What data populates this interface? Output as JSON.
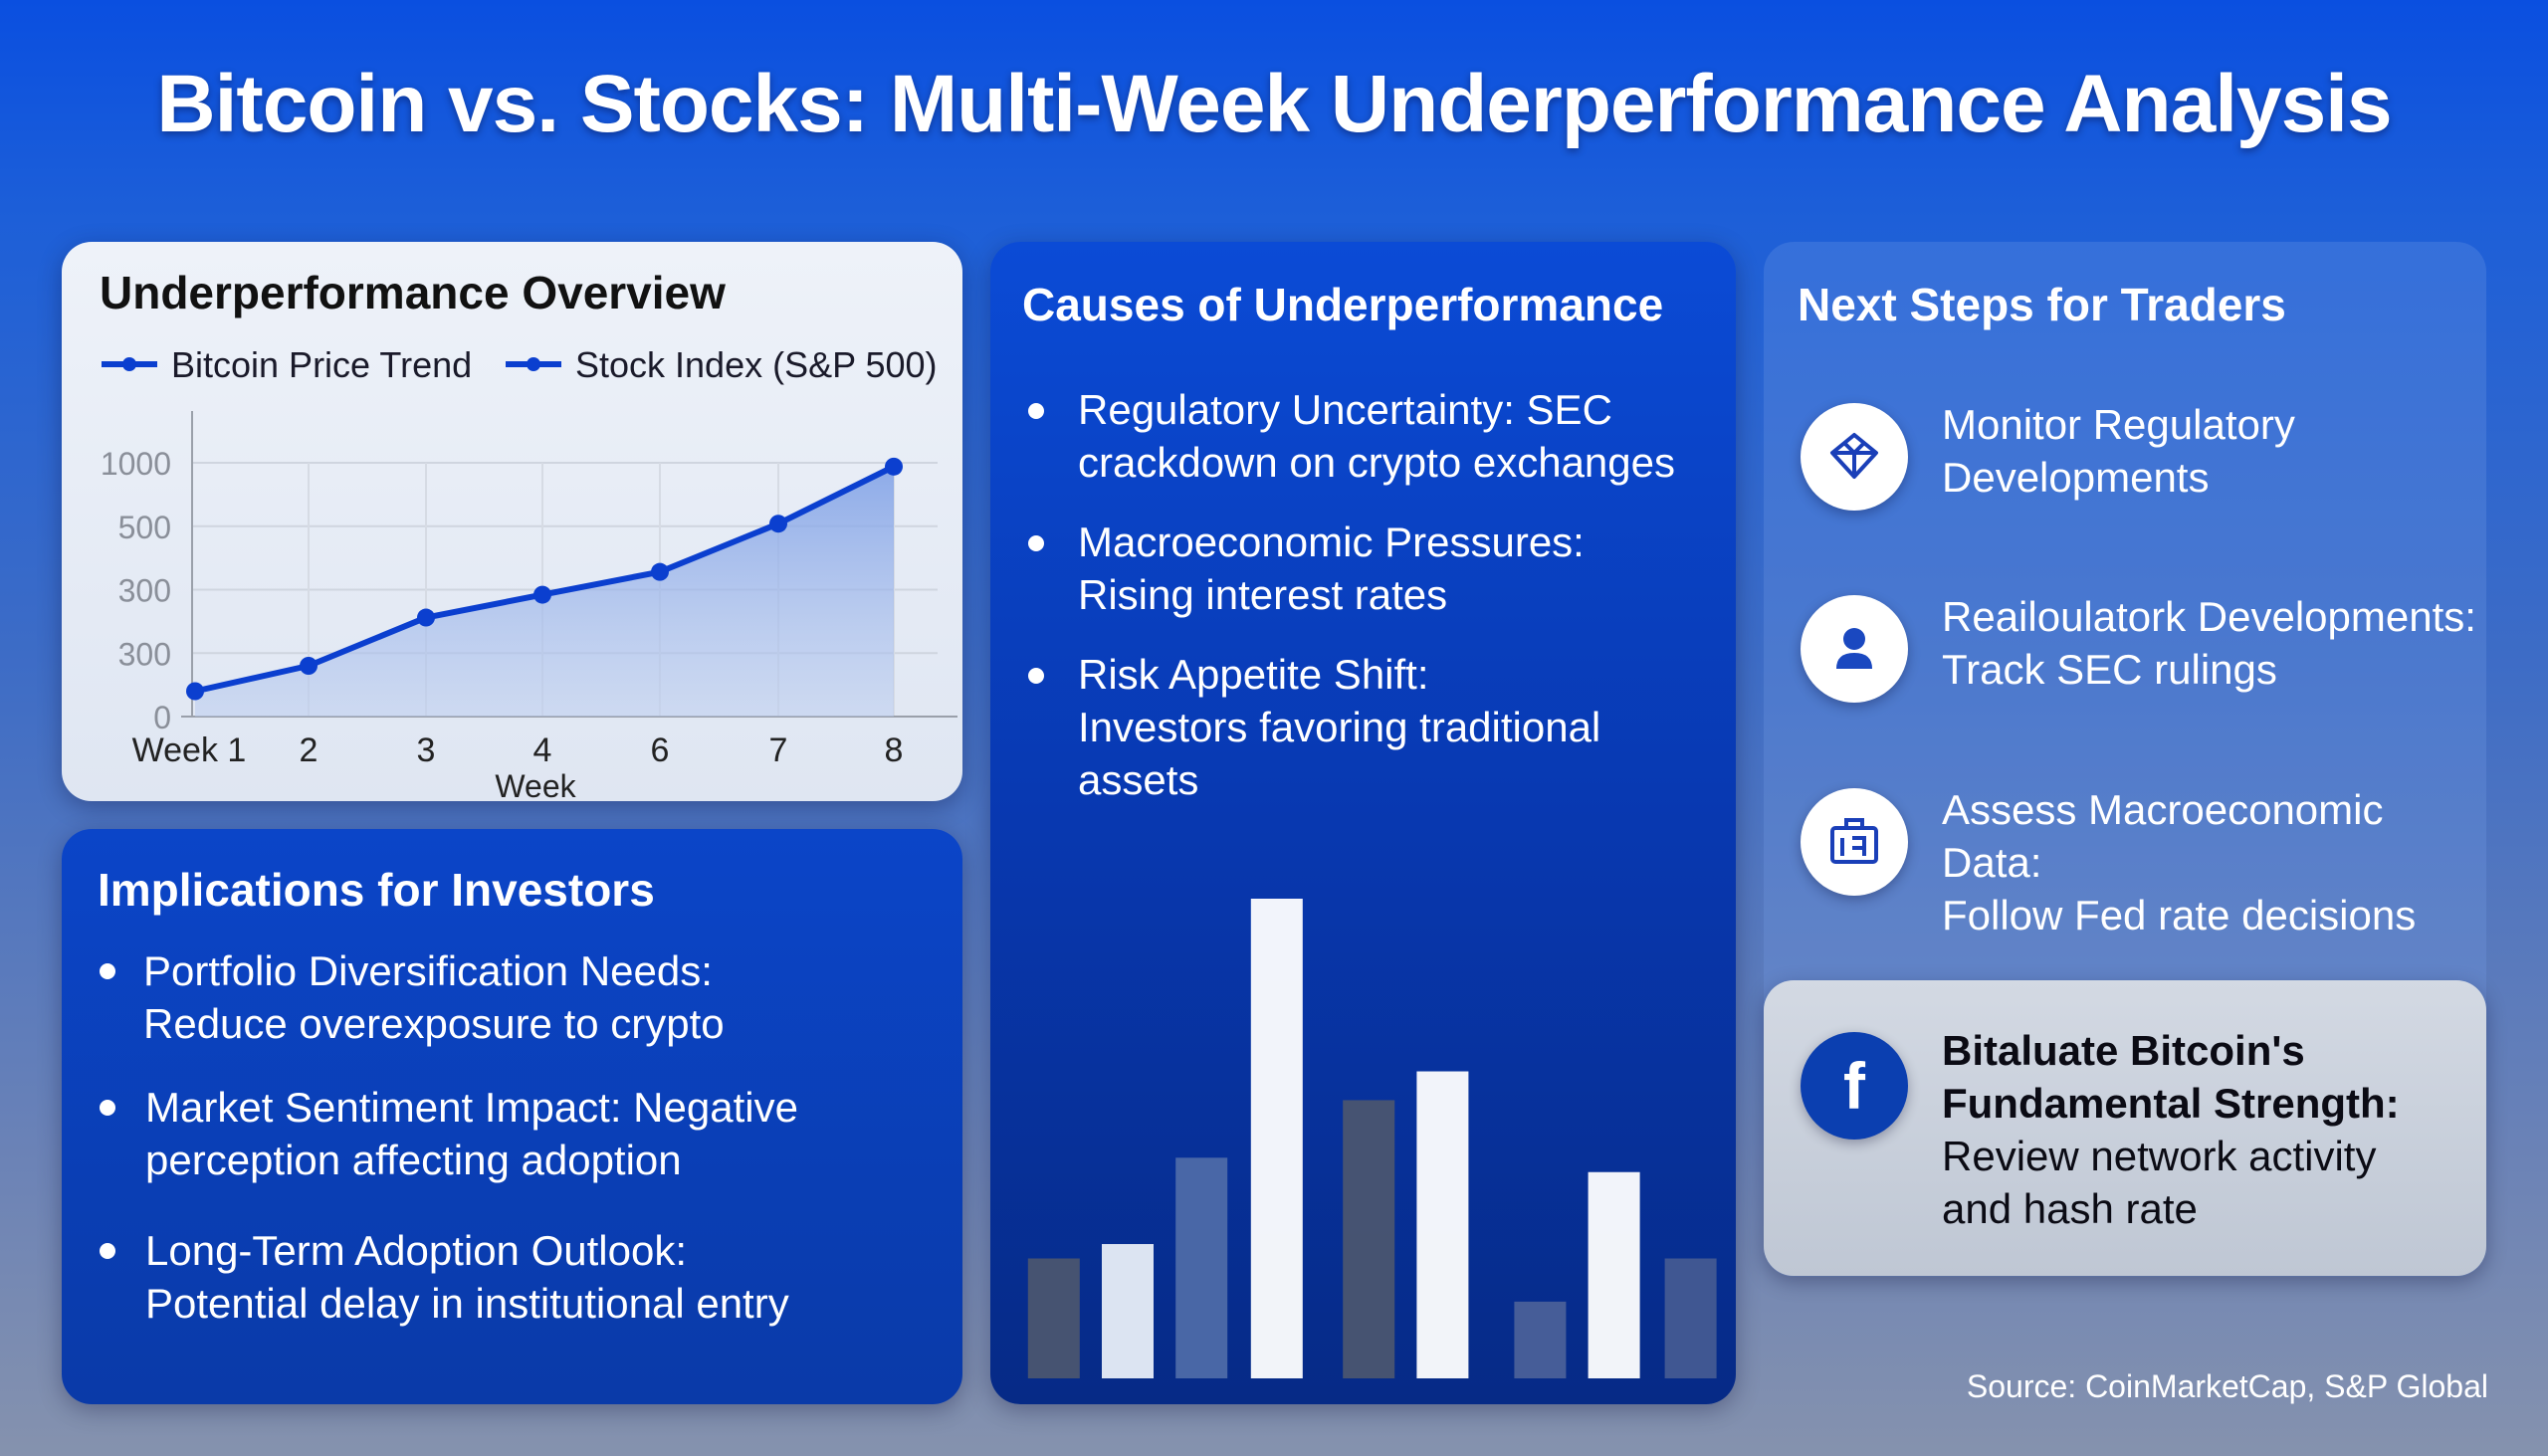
{
  "title": "Bitcoin vs. Stocks: Multi-Week Underperformance Analysis",
  "overview": {
    "title": "Underperformance Overview"
  },
  "chart_data": [
    {
      "type": "area",
      "title": "Underperformance Overview",
      "xlabel": "Week",
      "ylabel": "",
      "legend": [
        "Bitcoin Price Trend",
        "Stock Index (S&P 500)"
      ],
      "legend_position": "top",
      "categories": [
        "Week 1",
        "2",
        "3",
        "4",
        "6",
        "7",
        "8"
      ],
      "y_tick_labels": [
        "0",
        "300",
        "300",
        "500",
        "1000"
      ],
      "series": [
        {
          "name": "Bitcoin Price Trend",
          "values": [
            100,
            200,
            390,
            480,
            570,
            760,
            985
          ]
        }
      ],
      "ylim": [
        0,
        1000
      ],
      "grid": true,
      "color": "#0b3fcf"
    },
    {
      "type": "bar",
      "title": "",
      "values": [
        25,
        28,
        46,
        100,
        58,
        64,
        16,
        43,
        25
      ],
      "colors": [
        "#4a5570",
        "#e8eef8",
        "#4d6aa8",
        "#ffffff",
        "#4a5570",
        "#ffffff",
        "#4a6099",
        "#ffffff",
        "#435a92"
      ]
    }
  ],
  "implications": {
    "title": "Implications for Investors",
    "items": [
      {
        "head": "Portfolio Diversification Needs:",
        "body": "Reduce overexposure to crypto"
      },
      {
        "head": "Market Sentiment Impact: Negative",
        "body": "perception affecting adoption"
      },
      {
        "head": "Long-Term Adoption Outlook:",
        "body": "Potential delay in institutional entry"
      }
    ]
  },
  "causes": {
    "title": "Causes of Underperformance",
    "items": [
      {
        "lines": [
          "Regulatory Uncertainty: SEC",
          "crackdown on crypto exchanges"
        ]
      },
      {
        "lines": [
          "Macroeconomic Pressures:",
          "Rising interest rates"
        ]
      },
      {
        "lines": [
          "Risk Appetite Shift:",
          "Investors favoring traditional",
          "assets"
        ]
      }
    ]
  },
  "next_steps": {
    "title": "Next Steps for Traders",
    "items": [
      {
        "icon": "diamond-icon",
        "lines": [
          "Monitor Regulatory",
          "Developments"
        ]
      },
      {
        "icon": "user-icon",
        "lines": [
          "Reailoulatork Developments:",
          "Track SEC rulings"
        ]
      },
      {
        "icon": "calendar-briefcase-icon",
        "lines": [
          "Assess Macroeconomic Data:",
          "Follow Fed rate decisions"
        ]
      }
    ],
    "highlight": {
      "icon": "facebook-icon",
      "lines_bold": [
        "Bitaluate Bitcoin's",
        "Fundamental Strength:"
      ],
      "lines": [
        "Review network activity",
        "and hash rate"
      ]
    }
  },
  "source": "Source: CoinMarketCap, S&P Global"
}
